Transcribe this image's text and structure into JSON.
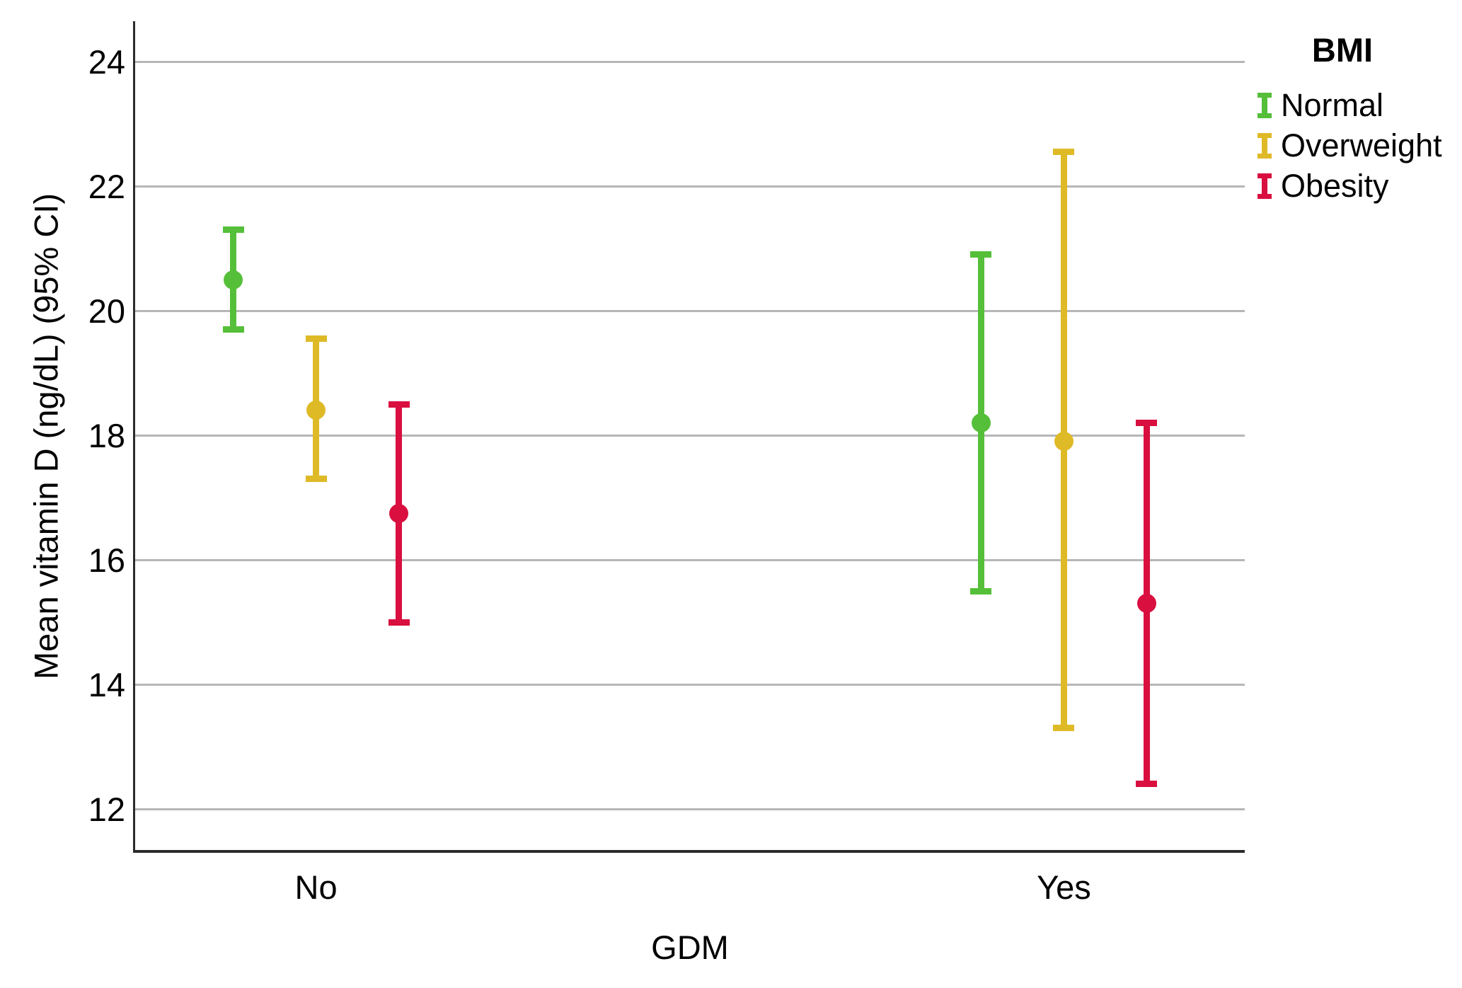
{
  "chart_data": {
    "type": "errorbar",
    "xlabel": "GDM",
    "ylabel": "Mean vitamin D (ng/dL) (95% CI)",
    "categories": [
      "No",
      "Yes"
    ],
    "y_ticks": [
      12,
      14,
      16,
      18,
      20,
      22,
      24
    ],
    "ylim": [
      11.32,
      24.65
    ],
    "grid": "horizontal-only",
    "legend_title": "BMI",
    "legend_position": "top-right-outside",
    "series": [
      {
        "name": "Normal",
        "color": "#55bf39",
        "points": [
          {
            "category": "No",
            "mean": 20.5,
            "ci_low": 19.7,
            "ci_high": 21.3
          },
          {
            "category": "Yes",
            "mean": 18.2,
            "ci_low": 15.5,
            "ci_high": 20.9
          }
        ]
      },
      {
        "name": "Overweight",
        "color": "#dfba27",
        "points": [
          {
            "category": "No",
            "mean": 18.4,
            "ci_low": 17.3,
            "ci_high": 19.55
          },
          {
            "category": "Yes",
            "mean": 17.9,
            "ci_low": 13.3,
            "ci_high": 22.55
          }
        ]
      },
      {
        "name": "Obesity",
        "color": "#d90f3f",
        "points": [
          {
            "category": "No",
            "mean": 16.75,
            "ci_low": 15.0,
            "ci_high": 18.5
          },
          {
            "category": "Yes",
            "mean": 15.3,
            "ci_low": 12.4,
            "ci_high": 18.2
          }
        ]
      }
    ]
  }
}
